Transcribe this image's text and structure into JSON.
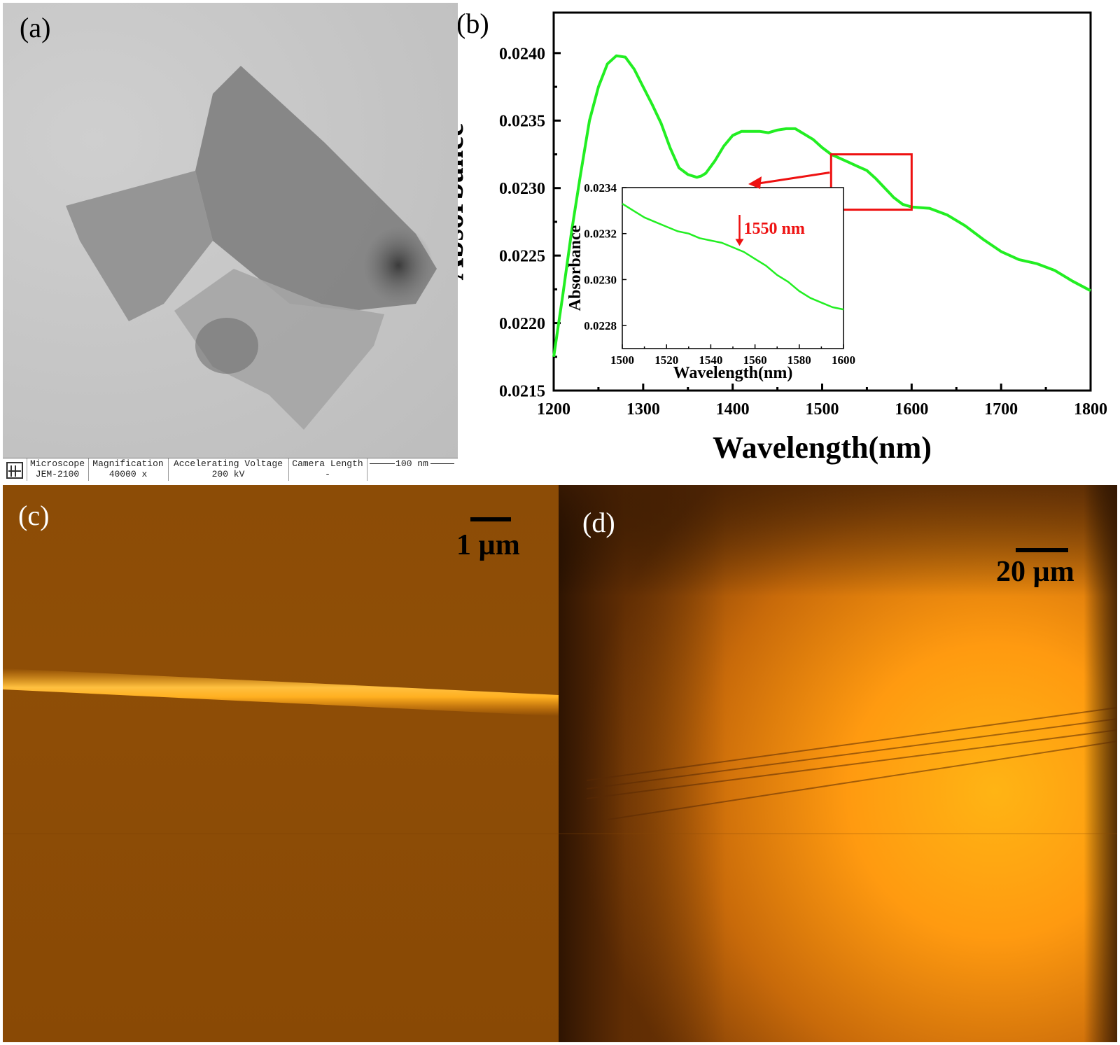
{
  "panels": {
    "a": {
      "label": "(a)",
      "info_bar": [
        {
          "header": "Microscope",
          "value": "JEM-2100"
        },
        {
          "header": "Magnification",
          "value": "40000 x"
        },
        {
          "header": "Accelerating Voltage",
          "value": "200 kV"
        },
        {
          "header": "Camera Length",
          "value": "-"
        },
        {
          "header": "",
          "value": "100 nm"
        }
      ]
    },
    "b": {
      "label": "(b)"
    },
    "c": {
      "label": "(c)",
      "scale_text": "1 µm"
    },
    "d": {
      "label": "(d)",
      "scale_text": "20 µm"
    }
  },
  "colors": {
    "curve": "#22ee22",
    "annotation": "#ee1111",
    "axis": "#000000"
  },
  "chart_data": [
    {
      "type": "line",
      "title": "",
      "xlabel": "Wavelength(nm)",
      "ylabel": "Absorbance",
      "xlim": [
        1200,
        1800
      ],
      "ylim": [
        0.0215,
        0.0243
      ],
      "xticks": [
        1200,
        1300,
        1400,
        1500,
        1600,
        1700,
        1800
      ],
      "yticks": [
        0.0215,
        0.022,
        0.0225,
        0.023,
        0.0235,
        0.024
      ],
      "ytick_labels": [
        "0.0215",
        "0.0220",
        "0.0225",
        "0.0230",
        "0.0235",
        "0.0240"
      ],
      "grid": false,
      "series": [
        {
          "x": [
            1200,
            1210,
            1220,
            1230,
            1240,
            1250,
            1260,
            1270,
            1280,
            1290,
            1300,
            1310,
            1320,
            1330,
            1340,
            1350,
            1360,
            1365,
            1370,
            1380,
            1390,
            1400,
            1410,
            1420,
            1430,
            1440,
            1450,
            1460,
            1470,
            1480,
            1490,
            1500,
            1510,
            1520,
            1530,
            1540,
            1550,
            1560,
            1570,
            1580,
            1590,
            1600,
            1620,
            1640,
            1660,
            1680,
            1700,
            1720,
            1740,
            1760,
            1780,
            1800
          ],
          "y": [
            0.02175,
            0.0222,
            0.02268,
            0.0231,
            0.0235,
            0.02375,
            0.02392,
            0.02398,
            0.02397,
            0.02388,
            0.02375,
            0.02362,
            0.02348,
            0.0233,
            0.02315,
            0.0231,
            0.02308,
            0.02309,
            0.02311,
            0.0232,
            0.02331,
            0.02339,
            0.02342,
            0.02342,
            0.02342,
            0.02341,
            0.02343,
            0.02344,
            0.02344,
            0.0234,
            0.02336,
            0.0233,
            0.02325,
            0.02322,
            0.02319,
            0.02316,
            0.02313,
            0.02307,
            0.023,
            0.02293,
            0.02288,
            0.02286,
            0.02285,
            0.0228,
            0.02272,
            0.02262,
            0.02253,
            0.02247,
            0.02244,
            0.02239,
            0.02231,
            0.02224
          ]
        }
      ]
    },
    {
      "type": "line",
      "title": "",
      "xlabel": "Wavelength(nm)",
      "ylabel": "Absorbance",
      "xlim": [
        1500,
        1600
      ],
      "ylim": [
        0.0227,
        0.0234
      ],
      "xticks": [
        1500,
        1520,
        1540,
        1560,
        1580,
        1600
      ],
      "yticks": [
        0.0228,
        0.023,
        0.0232,
        0.0234
      ],
      "ytick_labels": [
        "0.0228",
        "0.0230",
        "0.0232",
        "0.0234"
      ],
      "grid": false,
      "annotations": [
        {
          "text": "1550 nm",
          "x": 1553
        }
      ],
      "series": [
        {
          "x": [
            1500,
            1505,
            1510,
            1515,
            1520,
            1525,
            1530,
            1535,
            1540,
            1545,
            1550,
            1555,
            1560,
            1565,
            1570,
            1575,
            1580,
            1585,
            1590,
            1595,
            1600
          ],
          "y": [
            0.02333,
            0.0233,
            0.02327,
            0.02325,
            0.02323,
            0.02321,
            0.0232,
            0.02318,
            0.02317,
            0.02316,
            0.02314,
            0.02312,
            0.02309,
            0.02306,
            0.02302,
            0.02299,
            0.02295,
            0.02292,
            0.0229,
            0.02288,
            0.02287
          ]
        }
      ]
    }
  ]
}
